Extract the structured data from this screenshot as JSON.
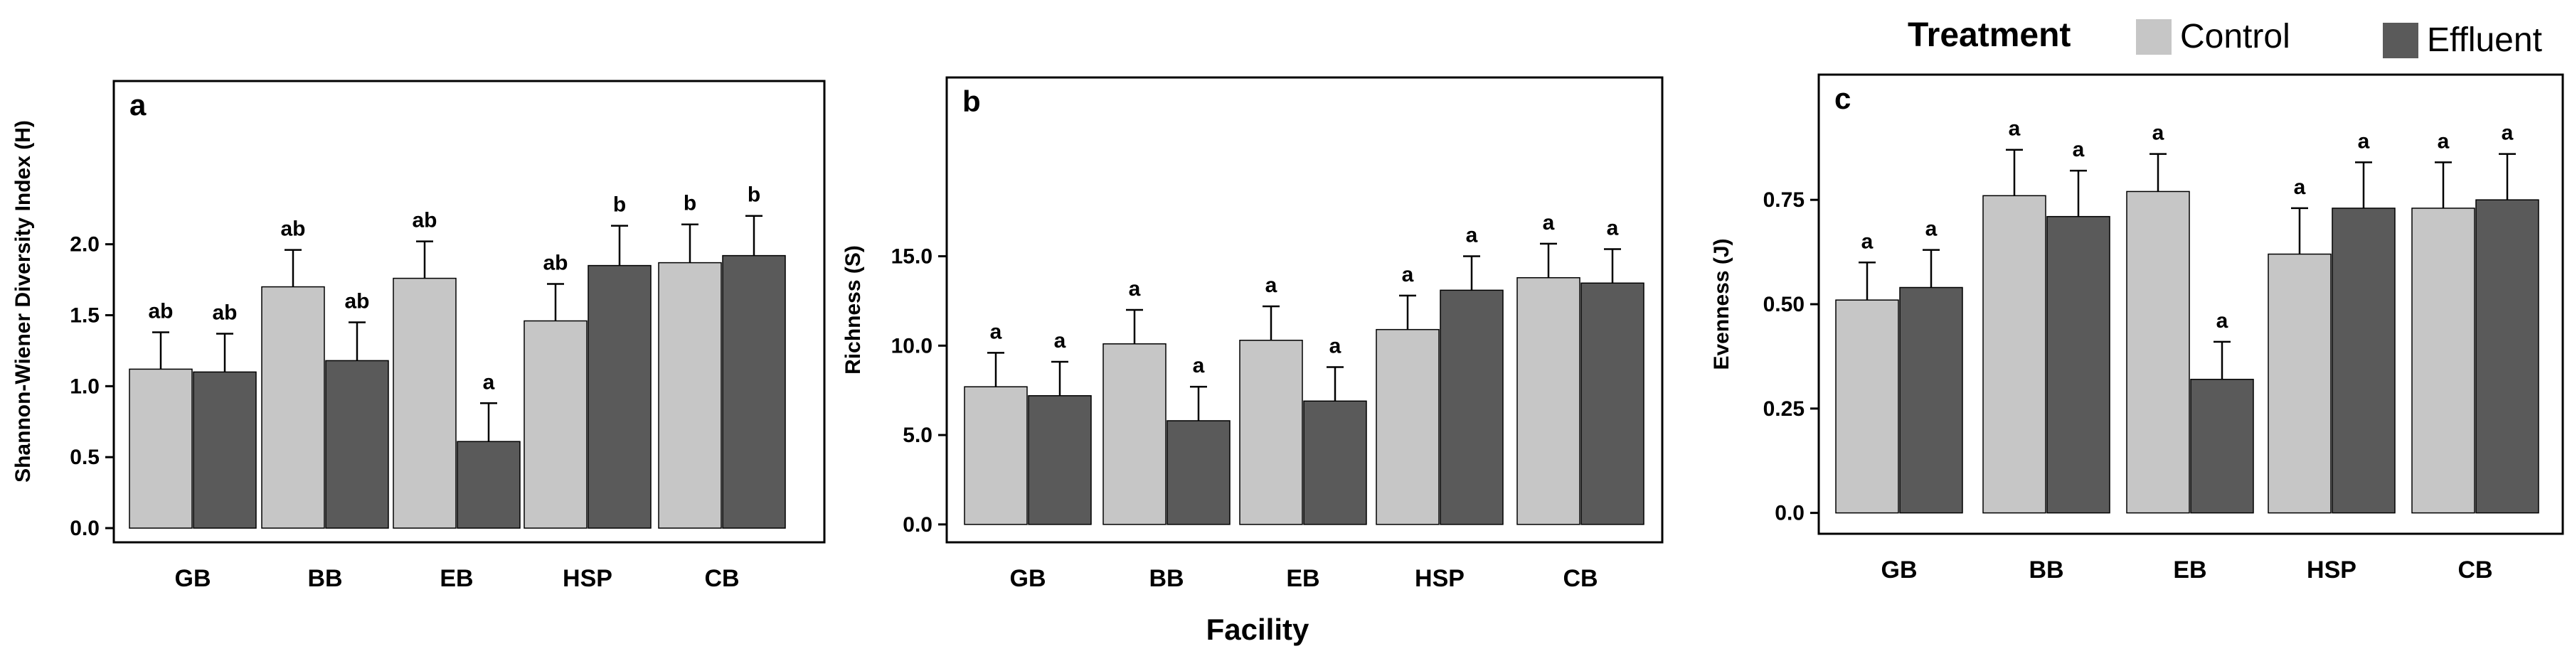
{
  "legend": {
    "title": "Treatment",
    "items": [
      {
        "label": "Control",
        "color": "#c6c6c6"
      },
      {
        "label": "Effluent",
        "color": "#5a5a5a"
      }
    ]
  },
  "xlabel": "Facility",
  "chart_data": [
    {
      "type": "bar",
      "panel_label": "a",
      "ylabel": "Shannon-Wiener Diversity Index (H)",
      "categories": [
        "GB",
        "BB",
        "EB",
        "HSP",
        "CB"
      ],
      "ylim": [
        -0.1,
        3.15
      ],
      "yticks": [
        0.0,
        0.5,
        1.0,
        1.5,
        2.0
      ],
      "ytick_labels": [
        "0.0",
        "0.5",
        "1.0",
        "1.5",
        "2.0"
      ],
      "series": [
        {
          "name": "Control",
          "values": [
            1.12,
            1.7,
            1.76,
            1.46,
            1.87
          ],
          "errors": [
            0.26,
            0.26,
            0.26,
            0.26,
            0.27
          ],
          "labels": [
            "ab",
            "ab",
            "ab",
            "ab",
            "b"
          ]
        },
        {
          "name": "Effluent",
          "values": [
            1.1,
            1.18,
            0.61,
            1.85,
            1.92
          ],
          "errors": [
            0.27,
            0.27,
            0.27,
            0.28,
            0.28
          ],
          "labels": [
            "ab",
            "ab",
            "a",
            "b",
            "b"
          ]
        }
      ]
    },
    {
      "type": "bar",
      "panel_label": "b",
      "ylabel": "Richness (S)",
      "categories": [
        "GB",
        "BB",
        "EB",
        "HSP",
        "CB"
      ],
      "ylim": [
        -1.0,
        25.0
      ],
      "yticks": [
        0.0,
        5.0,
        10.0,
        15.0
      ],
      "ytick_labels": [
        "0.0",
        "5.0",
        "10.0",
        "15.0"
      ],
      "series": [
        {
          "name": "Control",
          "values": [
            7.7,
            10.1,
            10.3,
            10.9,
            13.8
          ],
          "errors": [
            1.9,
            1.9,
            1.9,
            1.9,
            1.9
          ],
          "labels": [
            "a",
            "a",
            "a",
            "a",
            "a"
          ]
        },
        {
          "name": "Effluent",
          "values": [
            7.2,
            5.8,
            6.9,
            13.1,
            13.5
          ],
          "errors": [
            1.9,
            1.9,
            1.9,
            1.9,
            1.9
          ],
          "labels": [
            "a",
            "a",
            "a",
            "a",
            "a"
          ]
        }
      ]
    },
    {
      "type": "bar",
      "panel_label": "c",
      "ylabel": "Evenness (J)",
      "categories": [
        "GB",
        "BB",
        "EB",
        "HSP",
        "CB"
      ],
      "ylim": [
        -0.05,
        1.05
      ],
      "yticks": [
        0.0,
        0.25,
        0.5,
        0.75
      ],
      "ytick_labels": [
        "0.0",
        "0.25",
        "0.50",
        "0.75"
      ],
      "series": [
        {
          "name": "Control",
          "values": [
            0.51,
            0.76,
            0.77,
            0.62,
            0.73
          ],
          "errors": [
            0.09,
            0.11,
            0.09,
            0.11,
            0.11
          ],
          "labels": [
            "a",
            "a",
            "a",
            "a",
            "a"
          ]
        },
        {
          "name": "Effluent",
          "values": [
            0.54,
            0.71,
            0.32,
            0.73,
            0.75
          ],
          "errors": [
            0.09,
            0.11,
            0.09,
            0.11,
            0.11
          ],
          "labels": [
            "a",
            "a",
            "a",
            "a",
            "a"
          ]
        }
      ]
    }
  ]
}
